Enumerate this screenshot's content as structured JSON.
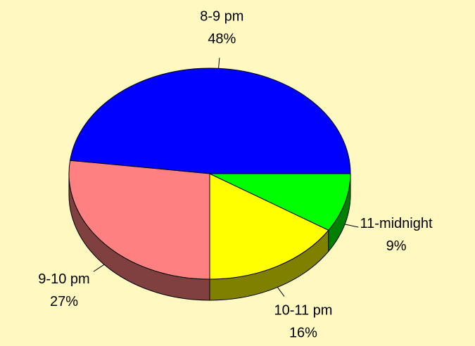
{
  "chart_data": {
    "type": "pie3d",
    "categories": [
      "8-9 pm",
      "9-10 pm",
      "10-11 pm",
      "11-midnight"
    ],
    "values": [
      48,
      27,
      16,
      9
    ],
    "value_labels": [
      "48%",
      "27%",
      "16%",
      "9%"
    ],
    "colors": [
      "#0000ff",
      "#ff8080",
      "#ffff00",
      "#00ff00"
    ]
  }
}
